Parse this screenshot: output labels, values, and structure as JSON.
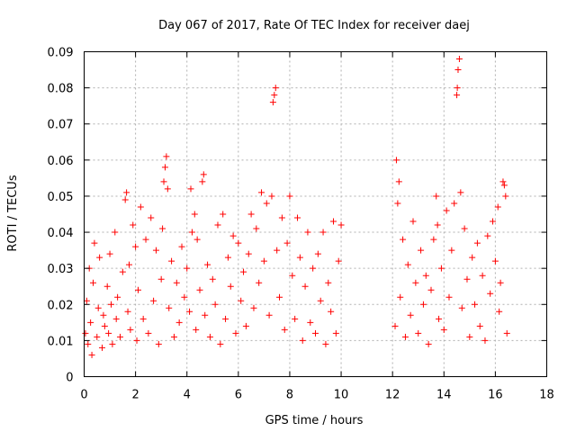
{
  "chart_data": {
    "type": "scatter",
    "title": "Day 067 of 2017, Rate Of TEC Index for receiver daej",
    "xlabel": "GPS time / hours",
    "ylabel": "ROTI / TECUs",
    "xlim": [
      0,
      18
    ],
    "ylim": [
      0,
      0.09
    ],
    "xticks": [
      0,
      2,
      4,
      6,
      8,
      10,
      12,
      14,
      16,
      18
    ],
    "xtick_labels": [
      "0",
      "2",
      "4",
      "6",
      "8",
      "10",
      "12",
      "14",
      "16",
      "18"
    ],
    "yticks": [
      0,
      0.01,
      0.02,
      0.03,
      0.04,
      0.05,
      0.06,
      0.07,
      0.08,
      0.09
    ],
    "ytick_labels": [
      "0",
      "0.01",
      "0.02",
      "0.03",
      "0.04",
      "0.05",
      "0.06",
      "0.07",
      "0.08",
      "0.09"
    ],
    "grid": true,
    "marker": "+",
    "marker_color": "#ff0000",
    "data_gap_hours": [
      10.0,
      12.1
    ],
    "series": [
      {
        "name": "ROTI",
        "points": [
          [
            0.05,
            0.012
          ],
          [
            0.1,
            0.021
          ],
          [
            0.15,
            0.009
          ],
          [
            0.2,
            0.03
          ],
          [
            0.25,
            0.015
          ],
          [
            0.3,
            0.006
          ],
          [
            0.35,
            0.026
          ],
          [
            0.4,
            0.037
          ],
          [
            0.5,
            0.011
          ],
          [
            0.55,
            0.019
          ],
          [
            0.6,
            0.033
          ],
          [
            0.7,
            0.008
          ],
          [
            0.75,
            0.017
          ],
          [
            0.8,
            0.014
          ],
          [
            0.9,
            0.025
          ],
          [
            0.95,
            0.012
          ],
          [
            1.0,
            0.034
          ],
          [
            1.05,
            0.02
          ],
          [
            1.1,
            0.009
          ],
          [
            1.2,
            0.04
          ],
          [
            1.25,
            0.016
          ],
          [
            1.3,
            0.022
          ],
          [
            1.4,
            0.011
          ],
          [
            1.5,
            0.029
          ],
          [
            1.6,
            0.049
          ],
          [
            1.65,
            0.051
          ],
          [
            1.7,
            0.018
          ],
          [
            1.75,
            0.031
          ],
          [
            1.8,
            0.013
          ],
          [
            1.9,
            0.042
          ],
          [
            2.0,
            0.036
          ],
          [
            2.05,
            0.01
          ],
          [
            2.1,
            0.024
          ],
          [
            2.2,
            0.047
          ],
          [
            2.3,
            0.016
          ],
          [
            2.4,
            0.038
          ],
          [
            2.5,
            0.012
          ],
          [
            2.6,
            0.044
          ],
          [
            2.7,
            0.021
          ],
          [
            2.8,
            0.035
          ],
          [
            2.9,
            0.009
          ],
          [
            3.0,
            0.027
          ],
          [
            3.05,
            0.041
          ],
          [
            3.1,
            0.054
          ],
          [
            3.15,
            0.058
          ],
          [
            3.2,
            0.061
          ],
          [
            3.25,
            0.052
          ],
          [
            3.3,
            0.019
          ],
          [
            3.4,
            0.032
          ],
          [
            3.5,
            0.011
          ],
          [
            3.6,
            0.026
          ],
          [
            3.7,
            0.015
          ],
          [
            3.8,
            0.036
          ],
          [
            3.9,
            0.022
          ],
          [
            4.0,
            0.03
          ],
          [
            4.1,
            0.018
          ],
          [
            4.15,
            0.052
          ],
          [
            4.2,
            0.04
          ],
          [
            4.3,
            0.045
          ],
          [
            4.35,
            0.013
          ],
          [
            4.4,
            0.038
          ],
          [
            4.5,
            0.024
          ],
          [
            4.6,
            0.054
          ],
          [
            4.65,
            0.056
          ],
          [
            4.7,
            0.017
          ],
          [
            4.8,
            0.031
          ],
          [
            4.9,
            0.011
          ],
          [
            5.0,
            0.027
          ],
          [
            5.1,
            0.02
          ],
          [
            5.2,
            0.042
          ],
          [
            5.3,
            0.009
          ],
          [
            5.4,
            0.045
          ],
          [
            5.5,
            0.016
          ],
          [
            5.6,
            0.033
          ],
          [
            5.7,
            0.025
          ],
          [
            5.8,
            0.039
          ],
          [
            5.9,
            0.012
          ],
          [
            6.0,
            0.037
          ],
          [
            6.1,
            0.021
          ],
          [
            6.2,
            0.029
          ],
          [
            6.3,
            0.014
          ],
          [
            6.4,
            0.034
          ],
          [
            6.5,
            0.045
          ],
          [
            6.6,
            0.019
          ],
          [
            6.7,
            0.041
          ],
          [
            6.8,
            0.026
          ],
          [
            6.9,
            0.051
          ],
          [
            7.0,
            0.032
          ],
          [
            7.1,
            0.048
          ],
          [
            7.2,
            0.017
          ],
          [
            7.3,
            0.05
          ],
          [
            7.35,
            0.076
          ],
          [
            7.4,
            0.078
          ],
          [
            7.45,
            0.08
          ],
          [
            7.5,
            0.035
          ],
          [
            7.6,
            0.022
          ],
          [
            7.7,
            0.044
          ],
          [
            7.8,
            0.013
          ],
          [
            7.9,
            0.037
          ],
          [
            8.0,
            0.05
          ],
          [
            8.1,
            0.028
          ],
          [
            8.2,
            0.016
          ],
          [
            8.3,
            0.044
          ],
          [
            8.4,
            0.033
          ],
          [
            8.5,
            0.01
          ],
          [
            8.6,
            0.025
          ],
          [
            8.7,
            0.04
          ],
          [
            8.8,
            0.015
          ],
          [
            8.9,
            0.03
          ],
          [
            9.0,
            0.012
          ],
          [
            9.1,
            0.034
          ],
          [
            9.2,
            0.021
          ],
          [
            9.3,
            0.04
          ],
          [
            9.4,
            0.009
          ],
          [
            9.5,
            0.026
          ],
          [
            9.6,
            0.018
          ],
          [
            9.7,
            0.043
          ],
          [
            9.8,
            0.012
          ],
          [
            9.9,
            0.032
          ],
          [
            10.0,
            0.042
          ],
          [
            12.1,
            0.014
          ],
          [
            12.15,
            0.06
          ],
          [
            12.2,
            0.048
          ],
          [
            12.25,
            0.054
          ],
          [
            12.3,
            0.022
          ],
          [
            12.4,
            0.038
          ],
          [
            12.5,
            0.011
          ],
          [
            12.6,
            0.031
          ],
          [
            12.7,
            0.017
          ],
          [
            12.8,
            0.043
          ],
          [
            12.9,
            0.026
          ],
          [
            13.0,
            0.012
          ],
          [
            13.1,
            0.035
          ],
          [
            13.2,
            0.02
          ],
          [
            13.3,
            0.028
          ],
          [
            13.4,
            0.009
          ],
          [
            13.5,
            0.024
          ],
          [
            13.6,
            0.038
          ],
          [
            13.7,
            0.05
          ],
          [
            13.75,
            0.042
          ],
          [
            13.8,
            0.016
          ],
          [
            13.9,
            0.03
          ],
          [
            14.0,
            0.013
          ],
          [
            14.1,
            0.046
          ],
          [
            14.2,
            0.022
          ],
          [
            14.3,
            0.035
          ],
          [
            14.4,
            0.048
          ],
          [
            14.5,
            0.078
          ],
          [
            14.52,
            0.08
          ],
          [
            14.55,
            0.085
          ],
          [
            14.6,
            0.088
          ],
          [
            14.65,
            0.051
          ],
          [
            14.7,
            0.019
          ],
          [
            14.8,
            0.041
          ],
          [
            14.9,
            0.027
          ],
          [
            15.0,
            0.011
          ],
          [
            15.1,
            0.033
          ],
          [
            15.2,
            0.02
          ],
          [
            15.3,
            0.037
          ],
          [
            15.4,
            0.014
          ],
          [
            15.5,
            0.028
          ],
          [
            15.6,
            0.01
          ],
          [
            15.7,
            0.039
          ],
          [
            15.8,
            0.023
          ],
          [
            15.9,
            0.043
          ],
          [
            16.0,
            0.032
          ],
          [
            16.1,
            0.047
          ],
          [
            16.15,
            0.018
          ],
          [
            16.2,
            0.026
          ],
          [
            16.3,
            0.054
          ],
          [
            16.35,
            0.053
          ],
          [
            16.4,
            0.05
          ],
          [
            16.45,
            0.012
          ]
        ]
      }
    ]
  }
}
